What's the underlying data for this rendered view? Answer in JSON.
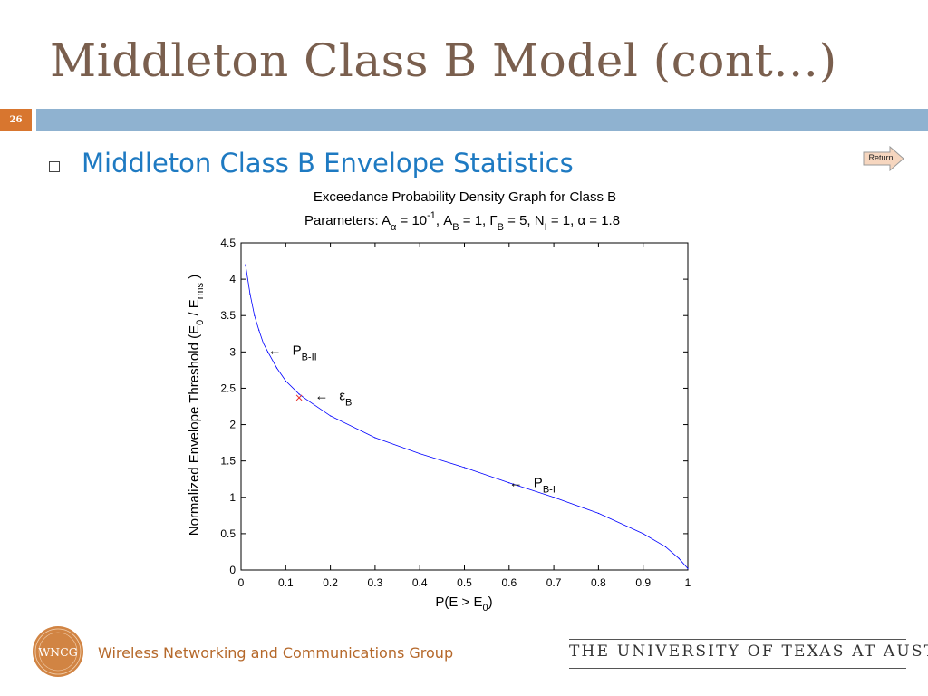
{
  "slide": {
    "title": "Middleton Class B Model (cont…)",
    "number": "26",
    "bullet_text": "Middleton Class B Envelope Statistics",
    "return_label": "Return",
    "accent_color": "#8fb2d0",
    "number_color": "#d8762f"
  },
  "footer": {
    "logo_text": "WNCG",
    "group_name": "Wireless Networking and Communications Group",
    "university": "THE UNIVERSITY OF TEXAS AT AUSTIN"
  },
  "chart_data": {
    "type": "line",
    "title": "Exceedance Probability Density Graph for Class B",
    "subtitle_parts": {
      "prefix": "Parameters: A",
      "sub_alpha": "α",
      "eq1": " = 10",
      "exp": "-1",
      "mid1": ", A",
      "sub_b1": "B",
      "mid2": " = 1, ",
      "gamma": "Γ",
      "sub_b2": "B",
      "mid3": " = 5, N",
      "sub_i": "I",
      "mid4": " = 1, ",
      "alpha": "α",
      "end": " = 1.8"
    },
    "xlabel": "P(E > E0)",
    "xlabel_parts": {
      "main": "P(E > E",
      "sub": "0",
      "end": ")"
    },
    "ylabel_parts": {
      "main": "Normalized Envelope Threshold (E",
      "sub0": "0",
      "mid": " / E",
      "sub_rms": "rms",
      "end": " )"
    },
    "xlim": [
      0,
      1
    ],
    "ylim": [
      0,
      4.5
    ],
    "xticks": [
      "0",
      "0.1",
      "0.2",
      "0.3",
      "0.4",
      "0.5",
      "0.6",
      "0.7",
      "0.8",
      "0.9",
      "1"
    ],
    "yticks": [
      "0",
      "0.5",
      "1",
      "1.5",
      "2",
      "2.5",
      "3",
      "3.5",
      "4",
      "4.5"
    ],
    "grid": false,
    "series": [
      {
        "color": "#0000ff",
        "x": [
          0.01,
          0.02,
          0.03,
          0.04,
          0.05,
          0.06,
          0.08,
          0.1,
          0.13,
          0.15,
          0.2,
          0.3,
          0.4,
          0.5,
          0.6,
          0.7,
          0.8,
          0.9,
          0.95,
          0.98,
          1.0
        ],
        "y": [
          4.2,
          3.8,
          3.5,
          3.3,
          3.12,
          3.0,
          2.78,
          2.6,
          2.42,
          2.33,
          2.12,
          1.82,
          1.6,
          1.41,
          1.2,
          1.0,
          0.78,
          0.5,
          0.32,
          0.16,
          0.02
        ]
      }
    ],
    "marker": {
      "label": "εB",
      "x": 0.13,
      "y": 2.37,
      "color": "#e8312c"
    },
    "annotations": [
      {
        "arrow": "←",
        "main": "P",
        "sub": "B-II",
        "x": 0.06,
        "y": 3.02
      },
      {
        "arrow": "←",
        "main": "ε",
        "sub": "B",
        "x": 0.165,
        "y": 2.4
      },
      {
        "arrow": "←",
        "main": "P",
        "sub": "B-I",
        "x": 0.6,
        "y": 1.2
      }
    ]
  }
}
